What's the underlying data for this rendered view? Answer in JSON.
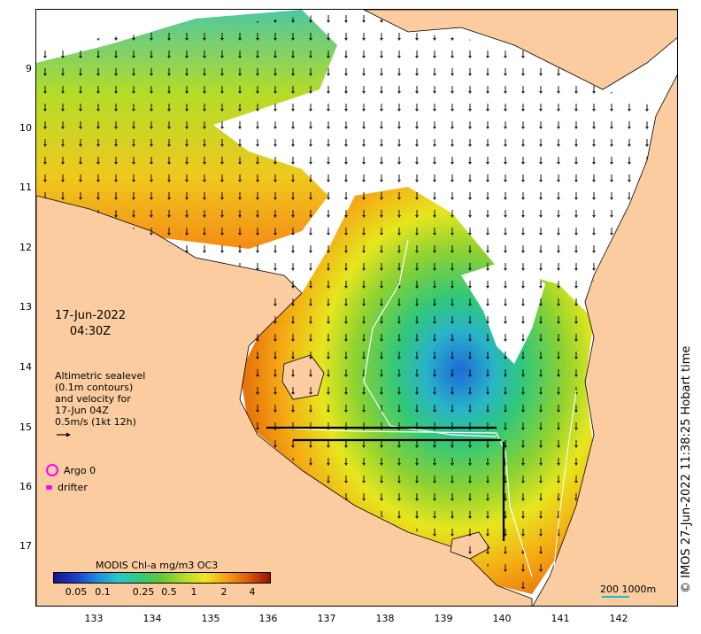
{
  "y_ticks": [
    "9",
    "10",
    "11",
    "12",
    "13",
    "14",
    "15",
    "16",
    "17"
  ],
  "x_ticks": [
    "133",
    "134",
    "135",
    "136",
    "137",
    "138",
    "139",
    "140",
    "141",
    "142"
  ],
  "date_line1": "17-Jun-2022",
  "date_line2": "04:30Z",
  "alt_lines": [
    "Altimetric sealevel",
    "(0.1m contours)",
    "and velocity for",
    "17-Jun 04Z",
    "0.5m/s (1kt 12h)"
  ],
  "argo_label": "Argo 0",
  "drifter_label": "drifter",
  "colorbar_title": "MODIS Chl-a mg/m3 OC3",
  "colorbar_ticks": [
    "0.05",
    "0.1",
    "0.25",
    "0.5",
    "1",
    "2",
    "4"
  ],
  "scale_label": "200  1000m",
  "credit": "© IMOS 27-Jun-2022 11:38:25 Hobart time",
  "colors": {
    "land": "#facca0",
    "ocean_cloud": "#ffffff",
    "chl_low": "#1e3cc8",
    "chl_high": "#961400",
    "argo": "#ff00ff",
    "scale_bar": "#18c0c0"
  }
}
